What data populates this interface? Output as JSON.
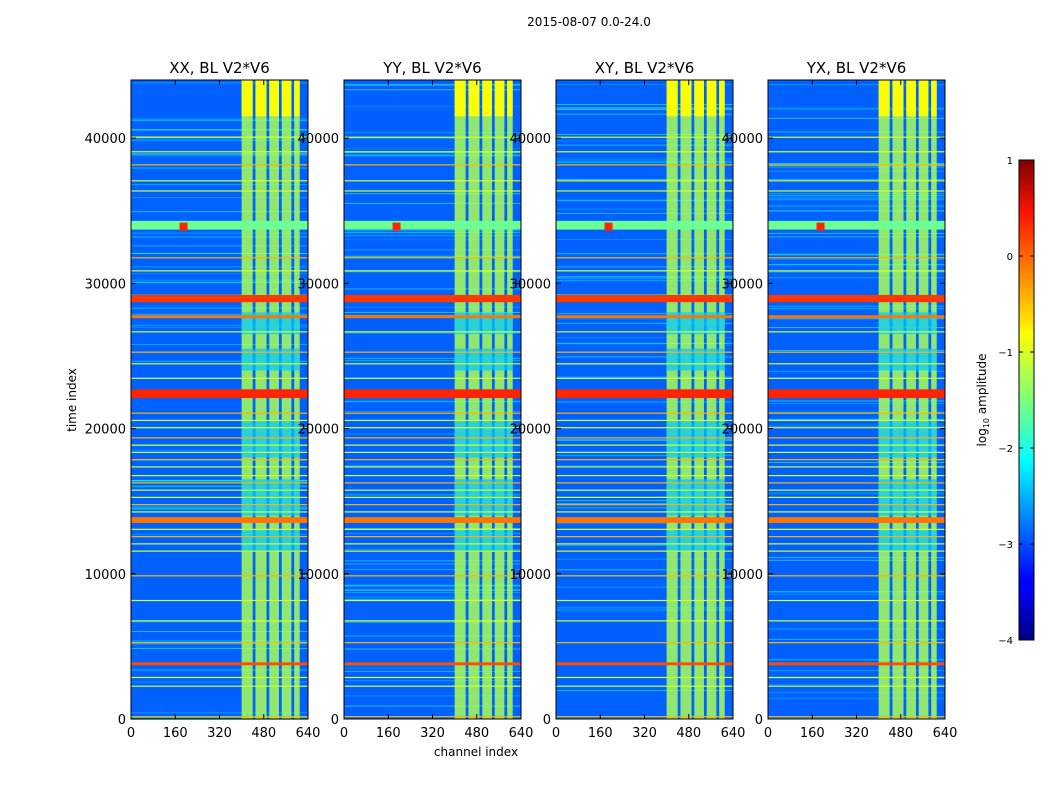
{
  "chart_data": {
    "type": "heatmap",
    "suptitle": "2015-08-07 0.0-24.0",
    "xlabel": "channel index",
    "ylabel": "time index",
    "xlim": [
      0,
      640
    ],
    "ylim": [
      0,
      44000
    ],
    "xticks": [
      0,
      160,
      320,
      480,
      640
    ],
    "yticks": [
      0,
      10000,
      20000,
      30000,
      40000
    ],
    "colormap": "jet",
    "colorbar": {
      "label": "log10 amplitude",
      "label_prefix": "log",
      "label_sub": "10",
      "label_suffix": " amplitude",
      "range": [
        -4,
        1
      ],
      "ticks": [
        1,
        0,
        -1,
        -2,
        -3,
        -4
      ],
      "tick_labels": [
        "1",
        "0",
        "−1",
        "−2",
        "−3",
        "−4"
      ]
    },
    "panels": [
      {
        "title": "XX, BL V2*V6"
      },
      {
        "title": "YY, BL V2*V6"
      },
      {
        "title": "XY, BL V2*V6"
      },
      {
        "title": "YX, BL V2*V6"
      }
    ],
    "features": {
      "rfi_channel_bands": [
        [
          400,
          440
        ],
        [
          450,
          490
        ],
        [
          500,
          535
        ],
        [
          545,
          580
        ],
        [
          590,
          610
        ]
      ],
      "rfi_band_level": -1.3,
      "background_level": -2.9,
      "hot_spot": {
        "channel": 190,
        "time": 33900,
        "level": 0.2
      },
      "bright_time_bands": [
        {
          "t0": 3700,
          "t1": 3900,
          "level": 0.0
        },
        {
          "t0": 13500,
          "t1": 13900,
          "level": -0.2
        },
        {
          "t0": 22100,
          "t1": 22700,
          "level": 0.2
        },
        {
          "t0": 28700,
          "t1": 29200,
          "level": 0.1
        },
        {
          "t0": 27600,
          "t1": 27800,
          "level": -0.2
        },
        {
          "t0": 33700,
          "t1": 34300,
          "level": -1.6
        }
      ],
      "band_channel_flagged_times": [
        [
          11500,
          13000
        ],
        [
          14000,
          16500
        ],
        [
          18000,
          20500
        ],
        [
          24000,
          25500
        ],
        [
          26500,
          28000
        ]
      ]
    }
  }
}
